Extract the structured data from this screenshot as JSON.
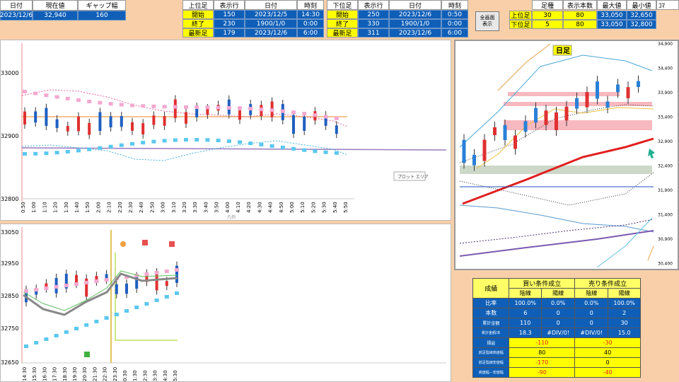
{
  "top_left": {
    "headers": [
      "日付",
      "現在値",
      "ギャップ幅"
    ],
    "values": [
      "2023/12/6",
      "32,940",
      "160"
    ]
  },
  "upper_table": {
    "label": "上位足",
    "col_headers": [
      "表示行",
      "日付",
      "時刻"
    ],
    "rows": [
      {
        "label": "開始",
        "rows": "150",
        "date": "2023/12/5",
        "time": "14:30"
      },
      {
        "label": "終了",
        "rows": "230",
        "date": "1900/1/0",
        "time": "0:00"
      },
      {
        "label": "最新足",
        "rows": "179",
        "date": "2023/12/6",
        "time": "6:00"
      }
    ]
  },
  "lower_table": {
    "label": "下位足",
    "col_headers": [
      "表示行",
      "日付",
      "時刻"
    ],
    "rows": [
      {
        "label": "開始",
        "rows": "250",
        "date": "2023/12/6",
        "time": "0:50"
      },
      {
        "label": "終了",
        "rows": "330",
        "date": "1900/1/0",
        "time": "0:00"
      },
      {
        "label": "最新足",
        "rows": "311",
        "date": "2023/12/6",
        "time": "6:00"
      }
    ]
  },
  "fullscreen_button": {
    "line1": "全画面",
    "line2": "表示"
  },
  "foot_table": {
    "headers": [
      "足種",
      "表示本数",
      "最大値",
      "最小値",
      "ｺﾏ"
    ],
    "rows": [
      {
        "label": "上位足",
        "type": "30",
        "count": "80",
        "max": "33,050",
        "min": "32,650"
      },
      {
        "label": "下位足",
        "type": "5",
        "count": "80",
        "max": "33,050",
        "min": "32,800"
      }
    ]
  },
  "chart1": {
    "y_labels": [
      "33000",
      "32900",
      "32800"
    ],
    "x_labels": [
      "0:50",
      "1:00",
      "1:10",
      "1:20",
      "1:30",
      "1:40",
      "1:50",
      "2:00",
      "2:10",
      "2:20",
      "2:30",
      "2:40",
      "2:50",
      "3:00",
      "3:10",
      "3:20",
      "3:30",
      "3:40",
      "3:50",
      "4:00",
      "4:10",
      "4:20",
      "4:30",
      "4:40",
      "4:50",
      "5:00",
      "5:10",
      "5:20",
      "5:30",
      "5:40",
      "5:50"
    ],
    "plot_area_label": "プロット エリア",
    "bottom_caption": "凡例"
  },
  "chart2": {
    "y_labels": [
      "33050",
      "32950",
      "32850",
      "32750",
      "32650"
    ],
    "x_labels": [
      "14:30",
      "15:30",
      "16:30",
      "17:30",
      "18:30",
      "19:30",
      "20:30",
      "21:30",
      "22:30",
      "23:30",
      "0:30",
      "1:30",
      "2:30",
      "3:30",
      "4:30",
      "5:30"
    ]
  },
  "daily_chart": {
    "title": "日足",
    "y_labels": [
      "34,900",
      "34,400",
      "33,900",
      "33,400",
      "32,900",
      "32,400",
      "31,900",
      "31,400",
      "30,900",
      "30,400"
    ]
  },
  "results": {
    "title": "成績",
    "buy_header": "買い条件成立",
    "sell_header": "売り条件成立",
    "sub_headers": [
      "陰線",
      "陽線",
      "陰線",
      "陽線"
    ],
    "rows": [
      {
        "label": "比率",
        "v": [
          "100.0%",
          "0.0%",
          "0.0%",
          "100.0%"
        ]
      },
      {
        "label": "本数",
        "v": [
          "6",
          "0",
          "0",
          "2"
        ]
      },
      {
        "label": "累計金額",
        "v": [
          "110",
          "0",
          "0",
          "30"
        ]
      },
      {
        "label": "累計金額/本",
        "v": [
          "18.3",
          "#DIV/0!",
          "#DIV/0!",
          "15.0"
        ]
      }
    ],
    "merged_rows": [
      {
        "label": "損益",
        "buy": "-110",
        "sell": "-30"
      },
      {
        "label": "前足陰線高値幅",
        "buy": "80",
        "sell": "40"
      },
      {
        "label": "前足陰線安値幅",
        "buy": "-170",
        "sell": "0"
      },
      {
        "label": "高値幅－安値幅",
        "buy": "-90",
        "sell": "-40"
      }
    ]
  },
  "colors": {
    "blue_cell": "#0f5fb8",
    "yellow_cell": "#ffff00",
    "result_head": "#ffff66",
    "background": "#f8cfa8"
  }
}
